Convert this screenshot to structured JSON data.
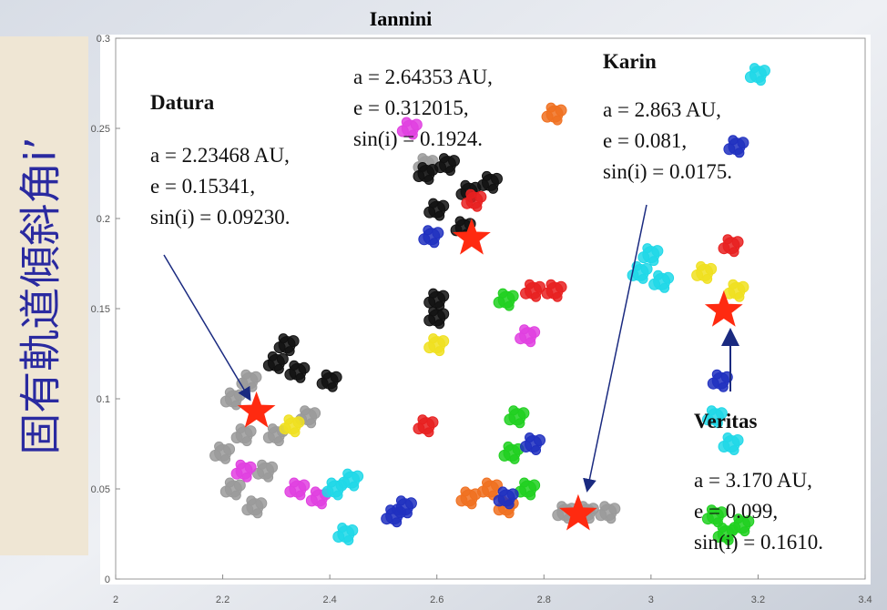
{
  "chart_data": {
    "type": "scatter",
    "title": "Iannini",
    "y_label": "固有軌道傾斜角i’",
    "xlim": [
      2,
      3.4
    ],
    "ylim": [
      0,
      0.3
    ],
    "xticks": [
      2,
      2.2,
      2.4,
      2.6,
      2.8,
      3,
      3.2,
      3.4
    ],
    "yticks": [
      0,
      0.05,
      0.1,
      0.15,
      0.2,
      0.25,
      0.3
    ],
    "series": [
      {
        "color": "#9a9a9a",
        "x": [
          2.22,
          2.24,
          2.28,
          2.22,
          2.26,
          2.3,
          2.25,
          2.2,
          2.84,
          2.88,
          2.92,
          2.58,
          2.36
        ],
        "values": [
          0.1,
          0.08,
          0.06,
          0.05,
          0.04,
          0.08,
          0.11,
          0.07,
          0.037,
          0.037,
          0.037,
          0.23,
          0.09
        ]
      },
      {
        "color": "#111111",
        "x": [
          2.3,
          2.34,
          2.4,
          2.32,
          2.58,
          2.62,
          2.66,
          2.7,
          2.6,
          2.65,
          2.6,
          2.6
        ],
        "values": [
          0.12,
          0.115,
          0.11,
          0.13,
          0.225,
          0.23,
          0.215,
          0.22,
          0.205,
          0.195,
          0.155,
          0.145
        ]
      },
      {
        "color": "#e040e0",
        "x": [
          2.55,
          2.34,
          2.38,
          2.77,
          2.24
        ],
        "values": [
          0.25,
          0.05,
          0.045,
          0.135,
          0.06
        ]
      },
      {
        "color": "#20d8e8",
        "x": [
          2.41,
          2.44,
          2.98,
          3.02,
          3.0,
          3.2,
          3.12,
          3.15,
          2.43
        ],
        "values": [
          0.05,
          0.055,
          0.17,
          0.165,
          0.18,
          0.28,
          0.09,
          0.075,
          0.025
        ]
      },
      {
        "color": "#f0e020",
        "x": [
          2.33,
          2.6,
          3.1,
          3.16
        ],
        "values": [
          0.085,
          0.13,
          0.17,
          0.16
        ]
      },
      {
        "color": "#20d020",
        "x": [
          2.75,
          2.74,
          2.77,
          2.73,
          3.14,
          3.12,
          3.17
        ],
        "values": [
          0.09,
          0.07,
          0.05,
          0.155,
          0.025,
          0.035,
          0.03
        ]
      },
      {
        "color": "#e82020",
        "x": [
          2.78,
          2.82,
          2.67,
          3.15,
          2.58
        ],
        "values": [
          0.16,
          0.16,
          0.21,
          0.185,
          0.085
        ]
      },
      {
        "color": "#f07020",
        "x": [
          2.7,
          2.66,
          2.73,
          2.82
        ],
        "values": [
          0.05,
          0.045,
          0.04,
          0.258
        ]
      },
      {
        "color": "#2030c0",
        "x": [
          2.54,
          2.73,
          2.78,
          2.59,
          3.16,
          3.13,
          2.52
        ],
        "values": [
          0.04,
          0.045,
          0.075,
          0.19,
          0.24,
          0.11,
          0.035
        ]
      }
    ],
    "stars": {
      "color": "#ff2a10",
      "x": [
        2.263,
        2.665,
        2.864,
        3.136
      ],
      "values": [
        0.093,
        0.189,
        0.036,
        0.149
      ]
    },
    "annotations": [
      {
        "name": "Datura",
        "lines": [
          "a = 2.23468 AU,",
          "e = 0.15341,",
          "sin(i) = 0.09230."
        ]
      },
      {
        "lines": [
          "a = 2.64353 AU,",
          "e = 0.312015,",
          "sin(i) = 0.1924."
        ]
      },
      {
        "name": "Karin",
        "lines": [
          "a = 2.863 AU,",
          "e = 0.081,",
          "sin(i) = 0.0175."
        ]
      },
      {
        "name": "Veritas",
        "lines": [
          "a = 3.170 AU,",
          "e = 0.099,",
          "sin(i) = 0.1610."
        ]
      }
    ]
  }
}
